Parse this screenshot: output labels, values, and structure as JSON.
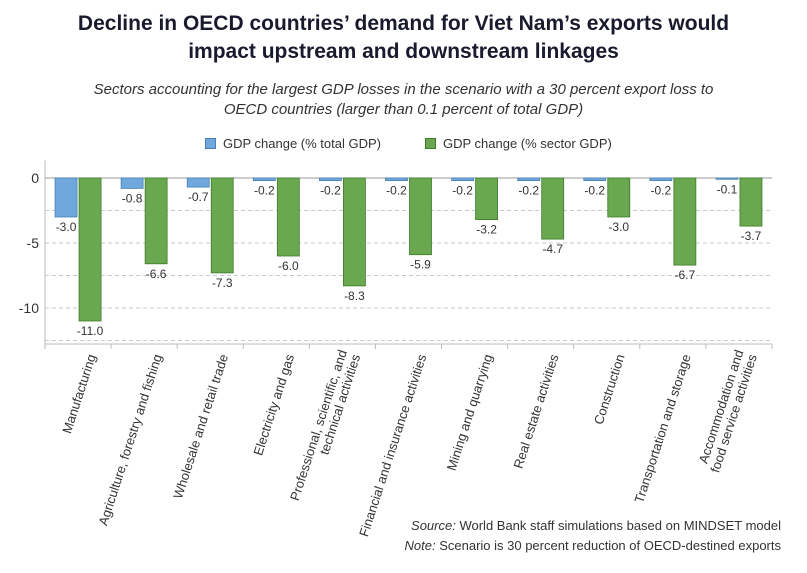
{
  "title_line1": "Decline in OECD countries’ demand for Viet Nam’s exports would",
  "title_line2": "impact upstream and downstream linkages",
  "subtitle_line1": "Sectors accounting for the largest GDP losses in the scenario with a 30 percent export loss to",
  "subtitle_line2": "OECD countries (larger than 0.1 percent of total GDP)",
  "source_label": "Source:",
  "source_text": " World Bank staff simulations based on MINDSET model",
  "note_label": "Note:",
  "note_text": " Scenario is 30 percent reduction of OECD-destined exports",
  "colors": {
    "total": "#6fa8dc",
    "sector": "#6aa84f",
    "total_edge": "#4a7fb0",
    "sector_edge": "#3e7a2a"
  },
  "chart_data": {
    "type": "bar",
    "ylim": [
      -13,
      1.5
    ],
    "yticks": [
      0,
      -5,
      -10
    ],
    "ytick_labels": [
      "0",
      "-5",
      "-10"
    ],
    "grid": "dashed horizontal",
    "legend_position": "top",
    "categories": [
      [
        "Manufacturing"
      ],
      [
        "Agriculture, forestry and fishing"
      ],
      [
        "Wholesale and retail trade"
      ],
      [
        "Electricity and gas"
      ],
      [
        "Professional, scientific, and",
        "technical activities"
      ],
      [
        "Financial and insurance activities"
      ],
      [
        "Mining and quarrying"
      ],
      [
        "Real estate activities"
      ],
      [
        "Construction"
      ],
      [
        "Transportation and storage"
      ],
      [
        "Accommodation and",
        "food service activities"
      ]
    ],
    "series": [
      {
        "name": "GDP change (% total GDP)",
        "values": [
          -3.0,
          -0.8,
          -0.7,
          -0.2,
          -0.2,
          -0.2,
          -0.2,
          -0.2,
          -0.2,
          -0.2,
          -0.1
        ],
        "labels": [
          "-3.0",
          "-0.8",
          "-0.7",
          "-0.2",
          "-0.2",
          "-0.2",
          "-0.2",
          "-0.2",
          "-0.2",
          "-0.2",
          "-0.1"
        ]
      },
      {
        "name": "GDP change (% sector GDP)",
        "values": [
          -11.0,
          -6.6,
          -7.3,
          -6.0,
          -8.3,
          -5.9,
          -3.2,
          -4.7,
          -3.0,
          -6.7,
          -3.7
        ],
        "labels": [
          "-11.0",
          "-6.6",
          "-7.3",
          "-6.0",
          "-8.3",
          "-5.9",
          "-3.2",
          "-4.7",
          "-3.0",
          "-6.7",
          "-3.7"
        ]
      }
    ]
  }
}
